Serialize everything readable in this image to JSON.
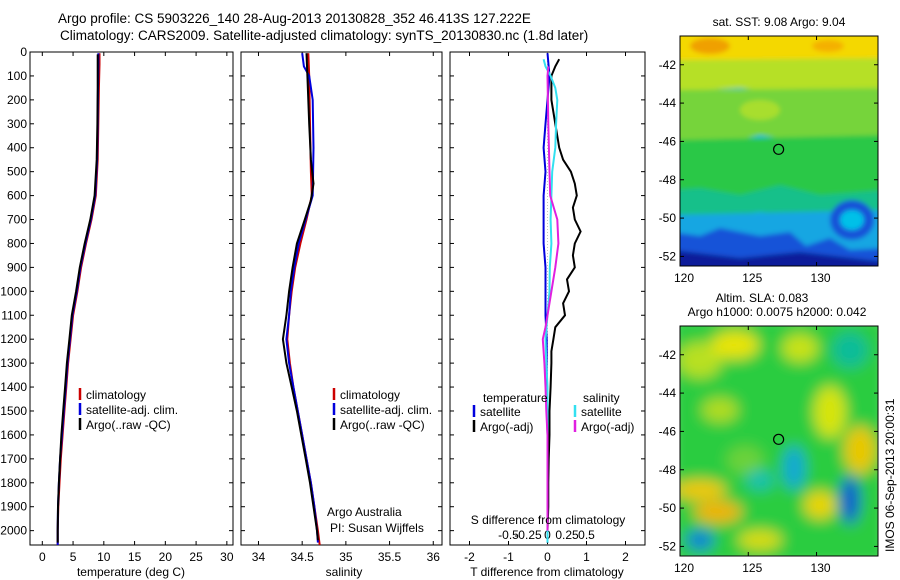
{
  "header": {
    "title_line1": "Argo profile: CS 5903226_140 28-Aug-2013 20130828_352 46.413S 127.222E",
    "title_line2": "Climatology: CARS2009. Satellite-adjusted climatology: synTS_20130830.nc (1.8d later)"
  },
  "colors": {
    "climatology": "#cc0000",
    "satellite": "#0000dd",
    "argo": "#000000",
    "satellite_salinity": "#33e0f0",
    "argo_salinity": "#e020e0"
  },
  "chart_data": [
    {
      "type": "line",
      "id": "temperature",
      "xlabel": "temperature (deg C)",
      "ylabel": "",
      "xlim": [
        -2,
        31
      ],
      "ylim": [
        2060,
        0
      ],
      "xticks": [
        0,
        5,
        10,
        15,
        20,
        25,
        30
      ],
      "yticks": [
        0,
        100,
        200,
        300,
        400,
        500,
        600,
        700,
        800,
        900,
        1000,
        1100,
        1200,
        1300,
        1400,
        1500,
        1600,
        1700,
        1800,
        1900,
        2000
      ],
      "legend": [
        "climatology",
        "satellite-adj. clim.",
        "Argo(..raw -QC)"
      ],
      "series": [
        {
          "name": "climatology",
          "color_key": "climatology",
          "points": [
            [
              9.3,
              5
            ],
            [
              9.3,
              50
            ],
            [
              9.2,
              150
            ],
            [
              9.1,
              300
            ],
            [
              9.0,
              450
            ],
            [
              8.7,
              600
            ],
            [
              8.0,
              700
            ],
            [
              7.1,
              800
            ],
            [
              6.3,
              900
            ],
            [
              5.7,
              1000
            ],
            [
              5.0,
              1100
            ],
            [
              4.6,
              1200
            ],
            [
              4.2,
              1300
            ],
            [
              3.9,
              1400
            ],
            [
              3.6,
              1500
            ],
            [
              3.3,
              1600
            ],
            [
              3.0,
              1700
            ],
            [
              2.8,
              1800
            ],
            [
              2.6,
              1900
            ],
            [
              2.5,
              2000
            ],
            [
              2.5,
              2060
            ]
          ]
        },
        {
          "name": "satellite-adj. clim.",
          "color_key": "satellite",
          "points": [
            [
              9.1,
              5
            ],
            [
              9.1,
              50
            ],
            [
              9.05,
              150
            ],
            [
              9.0,
              300
            ],
            [
              8.9,
              450
            ],
            [
              8.6,
              600
            ],
            [
              7.9,
              700
            ],
            [
              7.0,
              800
            ],
            [
              6.2,
              900
            ],
            [
              5.6,
              1000
            ],
            [
              4.9,
              1100
            ],
            [
              4.5,
              1200
            ],
            [
              4.1,
              1300
            ],
            [
              3.8,
              1400
            ],
            [
              3.5,
              1500
            ],
            [
              3.2,
              1600
            ],
            [
              2.9,
              1700
            ],
            [
              2.7,
              1800
            ],
            [
              2.55,
              1900
            ],
            [
              2.5,
              2000
            ],
            [
              2.5,
              2060
            ]
          ]
        },
        {
          "name": "Argo(..raw -QC)",
          "color_key": "argo",
          "points": [
            [
              9.0,
              10
            ],
            [
              9.0,
              50
            ],
            [
              9.0,
              150
            ],
            [
              8.95,
              300
            ],
            [
              8.85,
              450
            ],
            [
              8.5,
              600
            ],
            [
              7.8,
              700
            ],
            [
              6.9,
              800
            ],
            [
              6.1,
              900
            ],
            [
              5.5,
              1000
            ],
            [
              4.8,
              1100
            ],
            [
              4.4,
              1200
            ],
            [
              4.0,
              1300
            ],
            [
              3.7,
              1400
            ],
            [
              3.4,
              1500
            ],
            [
              3.1,
              1600
            ],
            [
              2.9,
              1700
            ],
            [
              2.7,
              1800
            ],
            [
              2.55,
              1900
            ],
            [
              2.5,
              2000
            ],
            [
              2.5,
              2050
            ]
          ]
        }
      ]
    },
    {
      "type": "line",
      "id": "salinity",
      "xlabel": "salinity",
      "ylabel": "",
      "xlim": [
        33.8,
        36.1
      ],
      "ylim": [
        2060,
        0
      ],
      "xticks": [
        34,
        34.5,
        35,
        35.5,
        36
      ],
      "xtick_labels": [
        "34",
        "34.5",
        "35",
        "35.5",
        "36"
      ],
      "legend": [
        "climatology",
        "satellite-adj. clim.",
        "Argo(..raw -QC)"
      ],
      "annotation": [
        "Argo Australia",
        "PI: Susan Wijffels"
      ],
      "series": [
        {
          "name": "climatology",
          "color_key": "climatology",
          "points": [
            [
              34.57,
              5
            ],
            [
              34.58,
              100
            ],
            [
              34.59,
              300
            ],
            [
              34.6,
              500
            ],
            [
              34.61,
              600
            ],
            [
              34.55,
              700
            ],
            [
              34.48,
              800
            ],
            [
              34.42,
              900
            ],
            [
              34.38,
              1000
            ],
            [
              34.35,
              1100
            ],
            [
              34.33,
              1200
            ],
            [
              34.36,
              1300
            ],
            [
              34.4,
              1400
            ],
            [
              34.45,
              1500
            ],
            [
              34.5,
              1600
            ],
            [
              34.55,
              1700
            ],
            [
              34.6,
              1800
            ],
            [
              34.64,
              1900
            ],
            [
              34.68,
              2000
            ],
            [
              34.7,
              2060
            ]
          ]
        },
        {
          "name": "satellite-adj. clim.",
          "color_key": "satellite",
          "points": [
            [
              34.5,
              5
            ],
            [
              34.52,
              60
            ],
            [
              34.58,
              100
            ],
            [
              34.62,
              200
            ],
            [
              34.63,
              400
            ],
            [
              34.62,
              600
            ],
            [
              34.54,
              700
            ],
            [
              34.46,
              800
            ],
            [
              34.41,
              900
            ],
            [
              34.37,
              1000
            ],
            [
              34.35,
              1100
            ],
            [
              34.32,
              1200
            ],
            [
              34.35,
              1300
            ],
            [
              34.4,
              1400
            ],
            [
              34.45,
              1500
            ],
            [
              34.5,
              1600
            ],
            [
              34.55,
              1700
            ],
            [
              34.6,
              1800
            ],
            [
              34.64,
              1900
            ],
            [
              34.67,
              2000
            ],
            [
              34.68,
              2050
            ]
          ]
        },
        {
          "name": "Argo(..raw -QC)",
          "color_key": "argo",
          "points": [
            [
              34.55,
              5
            ],
            [
              34.56,
              100
            ],
            [
              34.58,
              300
            ],
            [
              34.6,
              450
            ],
            [
              34.63,
              550
            ],
            [
              34.6,
              620
            ],
            [
              34.53,
              700
            ],
            [
              34.44,
              800
            ],
            [
              34.39,
              900
            ],
            [
              34.35,
              1000
            ],
            [
              34.32,
              1100
            ],
            [
              34.28,
              1200
            ],
            [
              34.32,
              1300
            ],
            [
              34.38,
              1400
            ],
            [
              34.44,
              1500
            ],
            [
              34.49,
              1600
            ],
            [
              34.54,
              1700
            ],
            [
              34.59,
              1800
            ],
            [
              34.63,
              1900
            ],
            [
              34.67,
              2000
            ],
            [
              34.68,
              2040
            ]
          ]
        }
      ]
    },
    {
      "type": "line",
      "id": "difference",
      "xlabel": "T difference from climatology",
      "ylabel": "",
      "xlim": [
        -2.5,
        2.5
      ],
      "ylim": [
        2060,
        0
      ],
      "xticks": [
        -2,
        -1,
        0,
        1,
        2
      ],
      "secondary_xlabel": "S difference from climatology",
      "secondary_xticks": [
        -0.5,
        -0.25,
        0,
        0.25,
        0.5
      ],
      "secondary_xtick_labels": [
        "-0.5",
        "-0.25",
        "0",
        "0.25",
        "0.5"
      ],
      "legend_temperature_title": "temperature",
      "legend_salinity_title": "salinity",
      "legend_temperature": [
        "satellite",
        "Argo(-adj)"
      ],
      "legend_salinity": [
        "satellite",
        "Argo(-adj)"
      ],
      "series": [
        {
          "name": "temperature satellite",
          "color_key": "satellite",
          "points": [
            [
              0.0,
              5
            ],
            [
              0.05,
              100
            ],
            [
              0.0,
              200
            ],
            [
              -0.05,
              300
            ],
            [
              -0.1,
              400
            ],
            [
              -0.05,
              500
            ],
            [
              -0.1,
              600
            ],
            [
              -0.1,
              700
            ],
            [
              -0.1,
              800
            ],
            [
              -0.05,
              900
            ],
            [
              -0.05,
              1000
            ],
            [
              -0.05,
              1100
            ],
            [
              -0.02,
              1200
            ],
            [
              -0.02,
              1400
            ],
            [
              0.0,
              1600
            ],
            [
              0.0,
              1800
            ],
            [
              0.0,
              2000
            ],
            [
              0.0,
              2050
            ]
          ]
        },
        {
          "name": "temperature Argo(-adj)",
          "color_key": "argo",
          "points": [
            [
              0.3,
              30
            ],
            [
              0.2,
              60
            ],
            [
              0.1,
              100
            ],
            [
              0.1,
              200
            ],
            [
              0.2,
              300
            ],
            [
              0.3,
              400
            ],
            [
              0.4,
              450
            ],
            [
              0.6,
              500
            ],
            [
              0.7,
              550
            ],
            [
              0.75,
              600
            ],
            [
              0.65,
              650
            ],
            [
              0.7,
              700
            ],
            [
              0.85,
              750
            ],
            [
              0.7,
              800
            ],
            [
              0.65,
              850
            ],
            [
              0.7,
              900
            ],
            [
              0.5,
              950
            ],
            [
              0.55,
              1000
            ],
            [
              0.4,
              1050
            ],
            [
              0.45,
              1100
            ],
            [
              0.2,
              1150
            ],
            [
              0.15,
              1200
            ],
            [
              0.1,
              1250
            ],
            [
              0.1,
              1300
            ],
            [
              0.08,
              1400
            ],
            [
              0.05,
              1500
            ],
            [
              0.05,
              1600
            ],
            [
              0.03,
              1700
            ],
            [
              0.02,
              1800
            ],
            [
              0.02,
              1900
            ],
            [
              0.0,
              2000
            ],
            [
              0.0,
              2050
            ]
          ]
        },
        {
          "name": "salinity satellite",
          "color_key": "satellite_salinity",
          "points": [
            [
              -0.1,
              30
            ],
            [
              -0.05,
              60
            ],
            [
              0.08,
              100
            ],
            [
              0.2,
              150
            ],
            [
              0.25,
              200
            ],
            [
              0.22,
              300
            ],
            [
              0.2,
              400
            ],
            [
              0.12,
              500
            ],
            [
              0.1,
              600
            ],
            [
              0.08,
              700
            ],
            [
              0.1,
              800
            ],
            [
              0.06,
              900
            ],
            [
              0.05,
              1000
            ],
            [
              0.0,
              1100
            ],
            [
              -0.05,
              1200
            ],
            [
              -0.03,
              1300
            ],
            [
              0.0,
              1400
            ],
            [
              0.0,
              1500
            ],
            [
              0.0,
              1700
            ],
            [
              0.0,
              1900
            ],
            [
              0.0,
              2050
            ]
          ]
        },
        {
          "name": "salinity Argo(-adj)",
          "color_key": "argo_salinity",
          "points": [
            [
              0.02,
              60
            ],
            [
              0.0,
              100
            ],
            [
              0.02,
              300
            ],
            [
              0.05,
              500
            ],
            [
              0.07,
              600
            ],
            [
              0.25,
              700
            ],
            [
              0.28,
              800
            ],
            [
              0.2,
              900
            ],
            [
              0.1,
              1000
            ],
            [
              0.0,
              1100
            ],
            [
              -0.05,
              1150
            ],
            [
              -0.12,
              1200
            ],
            [
              -0.08,
              1300
            ],
            [
              -0.05,
              1400
            ],
            [
              -0.03,
              1500
            ],
            [
              0.0,
              1600
            ],
            [
              0.0,
              1800
            ],
            [
              0.0,
              2000
            ]
          ]
        }
      ]
    },
    {
      "type": "heatmap",
      "id": "sst_map",
      "title": "sat. SST: 9.08  Argo: 9.04",
      "xlim": [
        120,
        134.5
      ],
      "ylim": [
        -52.5,
        -40.5
      ],
      "xticks": [
        120,
        125,
        130
      ],
      "yticks": [
        -42,
        -44,
        -46,
        -48,
        -50,
        -52
      ],
      "marker": [
        127.222,
        -46.413
      ]
    },
    {
      "type": "heatmap",
      "id": "sla_map",
      "title": "Altim. SLA: 0.083",
      "subtitle": "Argo h1000: 0.0075 h2000: 0.042",
      "xlim": [
        120,
        134.5
      ],
      "ylim": [
        -52.5,
        -40.5
      ],
      "xticks": [
        120,
        125,
        130
      ],
      "yticks": [
        -42,
        -44,
        -46,
        -48,
        -50,
        -52
      ],
      "marker": [
        127.222,
        -46.413
      ]
    }
  ],
  "footer": {
    "imos_stamp": "IMOS 06-Sep-2013 20:00:31"
  }
}
